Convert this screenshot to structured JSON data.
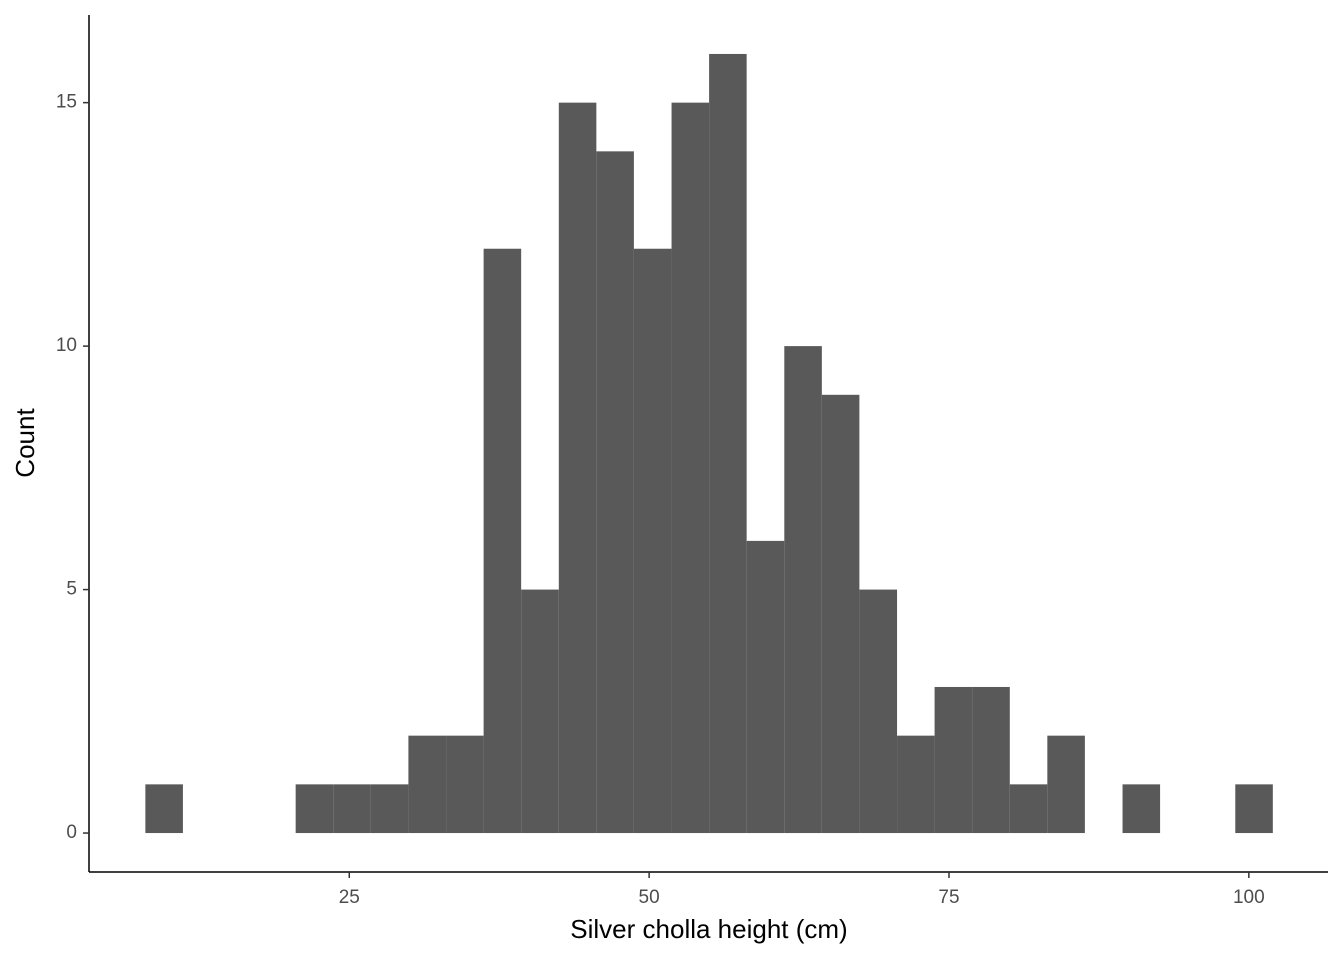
{
  "chart_data": {
    "type": "histogram",
    "xlabel": "Silver cholla height (cm)",
    "ylabel": "Count",
    "bins": [
      8,
      11.13,
      14.27,
      17.4,
      20.53,
      23.67,
      26.8,
      29.93,
      33.07,
      36.2,
      39.33,
      42.47,
      45.6,
      48.73,
      51.87,
      55,
      58.13,
      61.27,
      64.4,
      67.53,
      70.67,
      73.8,
      76.93,
      80.07,
      83.2,
      86.33,
      89.47,
      92.6,
      95.73,
      98.87,
      102
    ],
    "values": [
      1,
      0,
      0,
      0,
      1,
      1,
      1,
      2,
      2,
      12,
      5,
      15,
      14,
      12,
      15,
      16,
      6,
      10,
      9,
      5,
      2,
      3,
      3,
      1,
      2,
      0,
      1,
      0,
      0,
      1
    ],
    "color": "#595959",
    "xlim": [
      3.3,
      106.6
    ],
    "xticks": [
      25,
      50,
      75,
      100
    ],
    "ylim": [
      -0.8,
      16.8
    ],
    "yticks": [
      0,
      5,
      10,
      15
    ],
    "grid": false
  }
}
